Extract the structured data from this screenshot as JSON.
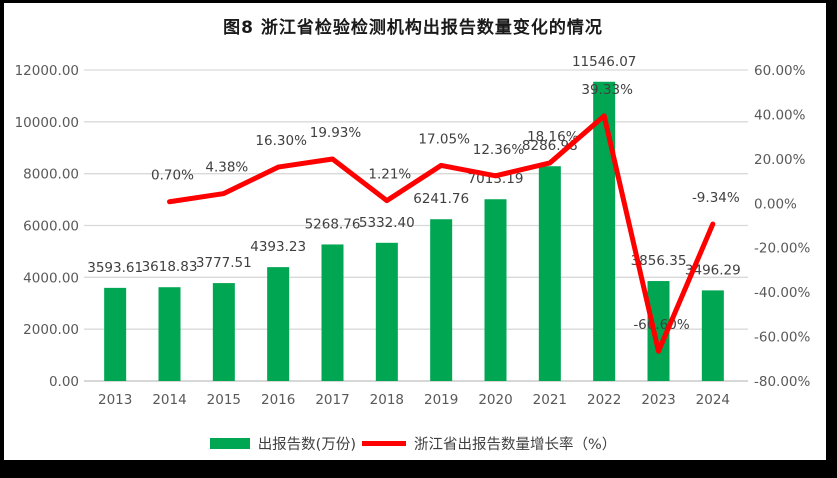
{
  "chart_data": {
    "type": "bar+line combo",
    "title": "图8 浙江省检验检测机构出报告数量变化的情况",
    "categories": [
      "2013",
      "2014",
      "2015",
      "2016",
      "2017",
      "2018",
      "2019",
      "2020",
      "2021",
      "2022",
      "2023",
      "2024"
    ],
    "series": [
      {
        "name": "出报告数(万份)",
        "type": "bar",
        "axis": "left",
        "color": "#00A651",
        "values": [
          3593.61,
          3618.83,
          3777.51,
          4393.23,
          5268.76,
          5332.4,
          6241.76,
          7013.19,
          8286.98,
          11546.07,
          3856.35,
          3496.29
        ],
        "labels": [
          "3593.61",
          "3618.83",
          "3777.51",
          "4393.23",
          "5268.76",
          "5332.40",
          "6241.76",
          "7013.19",
          "8286.98",
          "11546.07",
          "3856.35",
          "3496.29"
        ]
      },
      {
        "name": "浙江省出报告数量增长率（%）",
        "type": "line",
        "axis": "right",
        "color": "#FF0000",
        "values": [
          null,
          0.7,
          4.38,
          16.3,
          19.93,
          1.21,
          17.05,
          12.36,
          18.16,
          39.33,
          -66.6,
          -9.34
        ],
        "labels": [
          null,
          "0.70%",
          "4.38%",
          "16.30%",
          "19.93%",
          "1.21%",
          "17.05%",
          "12.36%",
          "18.16%",
          "39.33%",
          "-66.60%",
          "-9.34%"
        ]
      }
    ],
    "left_axis": {
      "min": 0,
      "max": 12000,
      "tick_labels": [
        "12000.00",
        "10000.00",
        "8000.00",
        "6000.00",
        "4000.00",
        "2000.00",
        "0.00"
      ]
    },
    "right_axis": {
      "min": -80,
      "max": 60,
      "tick_labels": [
        "60.00%",
        "40.00%",
        "20.00%",
        "0.00%",
        "-20.00%",
        "-40.00%",
        "-60.00%",
        "-80.00%"
      ]
    },
    "grid": true,
    "legend_position": "bottom"
  },
  "colors": {
    "bar": "#00A651",
    "line": "#FF0000",
    "gridline": "#D9D9D9",
    "baseline": "#BFBFBF",
    "tick_text": "#595959",
    "data_label_text": "#404040",
    "title_text": "#1a1a1a",
    "photo_border": "#000000"
  }
}
